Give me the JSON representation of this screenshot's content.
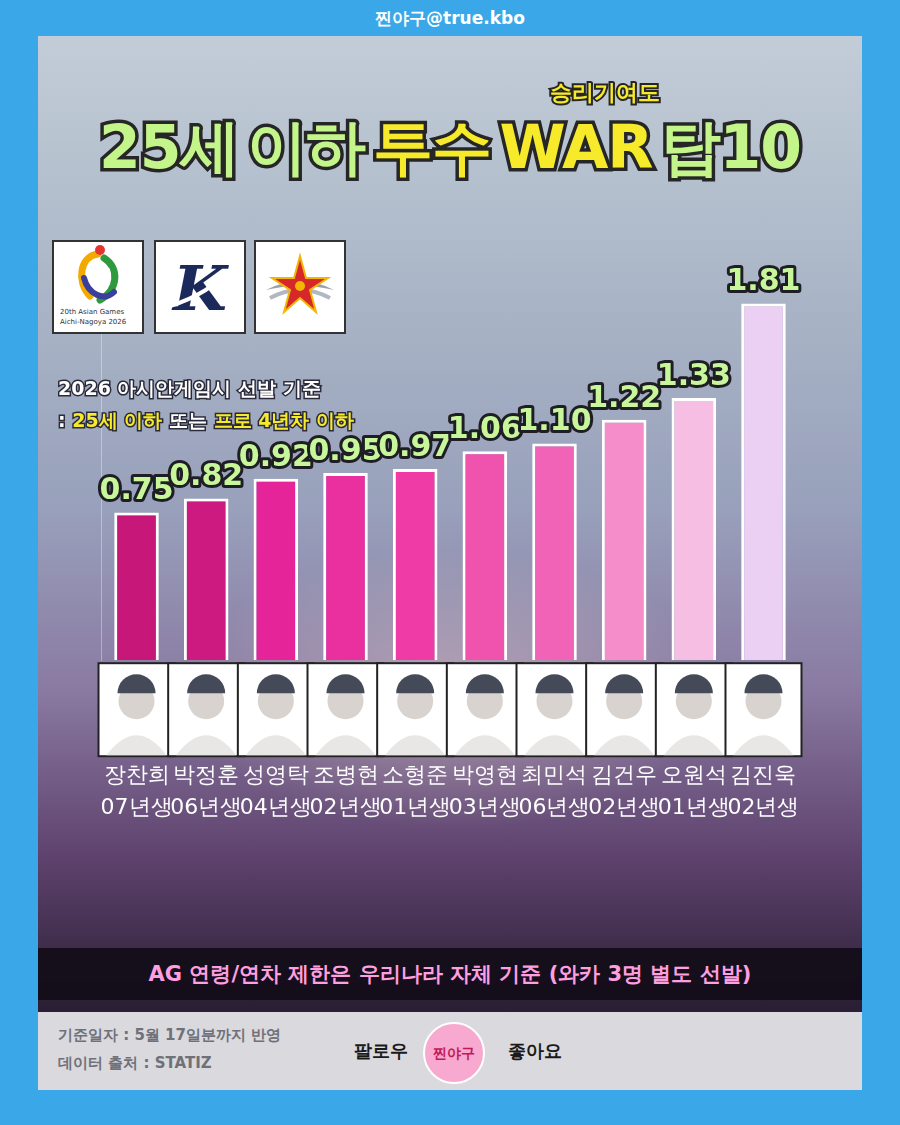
{
  "header": "찐야구@true.kbo",
  "chart_data": {
    "type": "bar",
    "title": "25세 이하 투수 WAR 탑10",
    "subtitle": "승리기여도",
    "categories": [
      [
        "장찬희",
        "07년생"
      ],
      [
        "박정훈",
        "06년생"
      ],
      [
        "성영탁",
        "04년생"
      ],
      [
        "조병현",
        "02년생"
      ],
      [
        "소형준",
        "01년생"
      ],
      [
        "박영현",
        "03년생"
      ],
      [
        "최민석",
        "06년생"
      ],
      [
        "김건우",
        "02년생"
      ],
      [
        "오원석",
        "01년생"
      ],
      [
        "김진욱",
        "02년생"
      ]
    ],
    "values": [
      0.75,
      0.82,
      0.92,
      0.95,
      0.97,
      1.06,
      1.1,
      1.22,
      1.33,
      1.81
    ],
    "value_labels": [
      "0.75",
      "0.82",
      "0.92",
      "0.95",
      "0.97",
      "1.06",
      "1.10",
      "1.22",
      "1.33",
      "1.81"
    ],
    "colors": [
      "#c7187a",
      "#cd1a80",
      "#e5249a",
      "#ea2f9f",
      "#ee3ba5",
      "#f053ae",
      "#f163b6",
      "#f48dca",
      "#f5bee2",
      "#ecd0f3"
    ],
    "ylim": [
      0,
      2
    ],
    "grid": false,
    "data_labels": true,
    "tick_labels": "x"
  },
  "logos": [
    "20th Asian Games",
    "Aichi-Nagoya 2026",
    "K"
  ],
  "criteria": [
    "2026 아시안게임시 선발 기준",
    [
      ": ",
      "25세 이하",
      " 또는 ",
      "프로 4년차 이하"
    ]
  ],
  "note": "AG 연령/연차 제한은 우리나라 자체 기준 (와카 3명 별도 선발)",
  "footer": {
    "source": [
      "기준일자 : 5월 17일분까지 반영",
      "데이터 출처 : STATIZ"
    ],
    "follow": "팔로우",
    "badge": "찐야구",
    "like": "좋아요"
  }
}
